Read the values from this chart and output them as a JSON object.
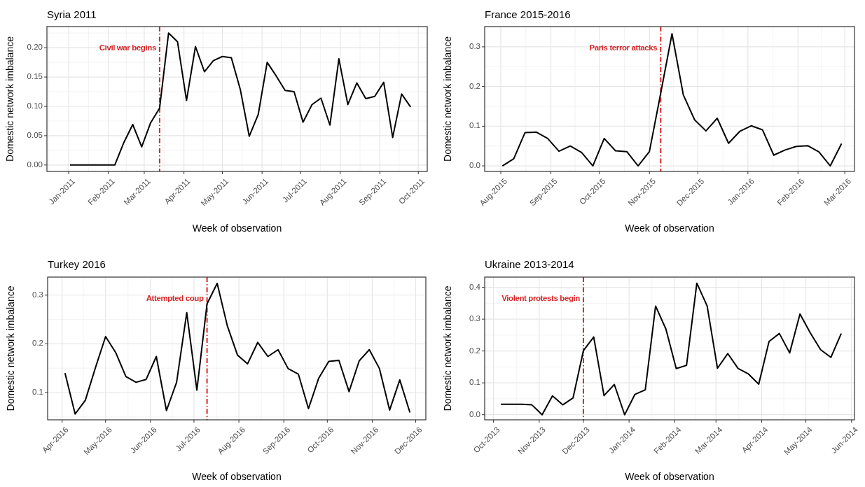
{
  "chart_data": [
    {
      "type": "line",
      "title": "Syria 2011",
      "xlabel": "Week of observation",
      "ylabel": "Domestic network imbalance",
      "grid": true,
      "line_style": "solid",
      "x": [
        "2011-01-02",
        "2011-01-09",
        "2011-01-16",
        "2011-01-23",
        "2011-01-30",
        "2011-02-06",
        "2011-02-13",
        "2011-02-20",
        "2011-02-27",
        "2011-03-06",
        "2011-03-13",
        "2011-03-20",
        "2011-03-27",
        "2011-04-03",
        "2011-04-10",
        "2011-04-17",
        "2011-04-24",
        "2011-05-01",
        "2011-05-08",
        "2011-05-15",
        "2011-05-22",
        "2011-05-29",
        "2011-06-05",
        "2011-06-12",
        "2011-06-19",
        "2011-06-26",
        "2011-07-03",
        "2011-07-10",
        "2011-07-17",
        "2011-07-24",
        "2011-07-31",
        "2011-08-07",
        "2011-08-14",
        "2011-08-21",
        "2011-08-28",
        "2011-09-04",
        "2011-09-11",
        "2011-09-18",
        "2011-09-25"
      ],
      "series": [
        {
          "color": "#000000",
          "values": [
            0,
            0,
            0,
            0,
            0,
            0,
            0.038,
            0.069,
            0.031,
            0.072,
            0.097,
            0.225,
            0.21,
            0.11,
            0.202,
            0.159,
            0.178,
            0.185,
            0.183,
            0.129,
            0.049,
            0.086,
            0.175,
            0.152,
            0.127,
            0.125,
            0.073,
            0.103,
            0.114,
            0.068,
            0.181,
            0.103,
            0.14,
            0.113,
            0.117,
            0.141,
            0.047,
            0.121,
            0.099
          ]
        }
      ],
      "xlim": [
        "2010-12-15",
        "2011-10-08"
      ],
      "xticks": [
        {
          "value": "2011-01-01",
          "label": "Jan-2011"
        },
        {
          "value": "2011-02-01",
          "label": "Feb-2011"
        },
        {
          "value": "2011-03-01",
          "label": "Mar-2011"
        },
        {
          "value": "2011-04-01",
          "label": "Apr-2011"
        },
        {
          "value": "2011-05-01",
          "label": "May-2011"
        },
        {
          "value": "2011-06-01",
          "label": "Jun-2011"
        },
        {
          "value": "2011-07-01",
          "label": "Jul-2011"
        },
        {
          "value": "2011-08-01",
          "label": "Aug-2011"
        },
        {
          "value": "2011-09-01",
          "label": "Sep-2011"
        },
        {
          "value": "2011-10-01",
          "label": "Oct-2011"
        }
      ],
      "ylim": [
        -0.011,
        0.236
      ],
      "yticks": [
        {
          "value": 0,
          "label": "0.00"
        },
        {
          "value": 0.05,
          "label": "0.05"
        },
        {
          "value": 0.1,
          "label": "0.10"
        },
        {
          "value": 0.15,
          "label": "0.15"
        },
        {
          "value": 0.2,
          "label": "0.20"
        }
      ],
      "ref_lines": [
        {
          "axis": "x",
          "value": "2011-03-13",
          "label": "Civil war begins",
          "color": "#d62728",
          "line_style": "dashdot"
        }
      ]
    },
    {
      "type": "line",
      "title": "France 2015-2016",
      "xlabel": "Week of observation",
      "ylabel": "Domestic network imbalance",
      "grid": true,
      "line_style": "solid",
      "x": [
        "2015-08-02",
        "2015-08-09",
        "2015-08-16",
        "2015-08-23",
        "2015-08-30",
        "2015-09-06",
        "2015-09-13",
        "2015-09-20",
        "2015-09-27",
        "2015-10-04",
        "2015-10-11",
        "2015-10-18",
        "2015-10-25",
        "2015-11-01",
        "2015-11-08",
        "2015-11-15",
        "2015-11-22",
        "2015-11-29",
        "2015-12-06",
        "2015-12-13",
        "2015-12-20",
        "2015-12-27",
        "2016-01-03",
        "2016-01-10",
        "2016-01-17",
        "2016-01-24",
        "2016-01-31",
        "2016-02-07",
        "2016-02-14",
        "2016-02-21",
        "2016-02-28"
      ],
      "series": [
        {
          "color": "#000000",
          "values": [
            0,
            0.018,
            0.084,
            0.085,
            0.069,
            0.037,
            0.05,
            0.034,
            0,
            0.069,
            0.038,
            0.036,
            0,
            0.036,
            0.183,
            0.333,
            0.179,
            0.116,
            0.088,
            0.12,
            0.057,
            0.087,
            0.101,
            0.091,
            0.027,
            0.04,
            0.049,
            0.051,
            0.035,
            0,
            0.056
          ]
        }
      ],
      "xlim": [
        "2015-07-22",
        "2016-03-07"
      ],
      "xticks": [
        {
          "value": "2015-08-01",
          "label": "Aug-2015"
        },
        {
          "value": "2015-09-01",
          "label": "Sep-2015"
        },
        {
          "value": "2015-10-01",
          "label": "Oct-2015"
        },
        {
          "value": "2015-11-01",
          "label": "Nov-2015"
        },
        {
          "value": "2015-12-01",
          "label": "Dec-2015"
        },
        {
          "value": "2016-01-01",
          "label": "Jan-2016"
        },
        {
          "value": "2016-02-01",
          "label": "Feb-2016"
        },
        {
          "value": "2016-03-01",
          "label": "Mar-2016"
        }
      ],
      "ylim": [
        -0.014,
        0.351
      ],
      "yticks": [
        {
          "value": 0,
          "label": "0.0"
        },
        0.1,
        0.2,
        0.3
      ],
      "ref_lines": [
        {
          "axis": "x",
          "value": "2015-11-08",
          "label": "Paris terror attacks",
          "color": "#d62728",
          "line_style": "dashdot"
        }
      ]
    },
    {
      "type": "line",
      "title": "Turkey 2016",
      "xlabel": "Week of observation",
      "ylabel": "Domestic network imbalance",
      "grid": true,
      "line_style": "solid",
      "x": [
        "2016-04-03",
        "2016-04-10",
        "2016-04-17",
        "2016-04-24",
        "2016-05-01",
        "2016-05-08",
        "2016-05-15",
        "2016-05-22",
        "2016-05-29",
        "2016-06-05",
        "2016-06-12",
        "2016-06-19",
        "2016-06-26",
        "2016-07-03",
        "2016-07-10",
        "2016-07-17",
        "2016-07-24",
        "2016-07-31",
        "2016-08-07",
        "2016-08-14",
        "2016-08-21",
        "2016-08-28",
        "2016-09-04",
        "2016-09-11",
        "2016-09-18",
        "2016-09-25",
        "2016-10-02",
        "2016-10-09",
        "2016-10-16",
        "2016-10-23",
        "2016-10-30",
        "2016-11-06",
        "2016-11-13",
        "2016-11-20",
        "2016-11-27"
      ],
      "series": [
        {
          "color": "#000000",
          "values": [
            0.14,
            0.056,
            0.084,
            0.151,
            0.215,
            0.182,
            0.133,
            0.121,
            0.127,
            0.174,
            0.063,
            0.121,
            0.264,
            0.105,
            0.282,
            0.324,
            0.237,
            0.177,
            0.159,
            0.203,
            0.174,
            0.188,
            0.149,
            0.138,
            0.067,
            0.129,
            0.164,
            0.166,
            0.102,
            0.165,
            0.188,
            0.149,
            0.064,
            0.126,
            0.059
          ]
        }
      ],
      "xlim": [
        "2016-03-22",
        "2016-12-08"
      ],
      "xticks": [
        {
          "value": "2016-04-01",
          "label": "Apr-2016"
        },
        {
          "value": "2016-05-01",
          "label": "May-2016"
        },
        {
          "value": "2016-06-01",
          "label": "Jun-2016"
        },
        {
          "value": "2016-07-01",
          "label": "Jul-2016"
        },
        {
          "value": "2016-08-01",
          "label": "Aug-2016"
        },
        {
          "value": "2016-09-01",
          "label": "Sep-2016"
        },
        {
          "value": "2016-10-01",
          "label": "Oct-2016"
        },
        {
          "value": "2016-11-01",
          "label": "Nov-2016"
        },
        {
          "value": "2016-12-01",
          "label": "Dec-2016"
        }
      ],
      "ylim": [
        0.044,
        0.337
      ],
      "yticks": [
        0.1,
        0.2,
        0.3
      ],
      "ref_lines": [
        {
          "axis": "x",
          "value": "2016-07-10",
          "label": "Attempted coup",
          "color": "#d62728",
          "line_style": "dashdot"
        }
      ]
    },
    {
      "type": "line",
      "title": "Ukraine 2013-2014",
      "xlabel": "Week of observation",
      "ylabel": "Domestic network imbalance",
      "grid": true,
      "line_style": "solid",
      "x": [
        "2013-10-06",
        "2013-10-13",
        "2013-10-20",
        "2013-10-27",
        "2013-11-03",
        "2013-11-10",
        "2013-11-17",
        "2013-11-24",
        "2013-12-01",
        "2013-12-08",
        "2013-12-15",
        "2013-12-22",
        "2013-12-29",
        "2014-01-05",
        "2014-01-12",
        "2014-01-19",
        "2014-01-26",
        "2014-02-02",
        "2014-02-09",
        "2014-02-16",
        "2014-02-23",
        "2014-03-02",
        "2014-03-09",
        "2014-03-16",
        "2014-03-23",
        "2014-03-30",
        "2014-04-06",
        "2014-04-13",
        "2014-04-20",
        "2014-04-27",
        "2014-05-04",
        "2014-05-11",
        "2014-05-18",
        "2014-05-25"
      ],
      "series": [
        {
          "color": "#000000",
          "values": [
            0.033,
            0.033,
            0.033,
            0.031,
            0,
            0.059,
            0.031,
            0.053,
            0.201,
            0.244,
            0.06,
            0.095,
            0,
            0.064,
            0.078,
            0.341,
            0.269,
            0.145,
            0.155,
            0.413,
            0.341,
            0.146,
            0.192,
            0.145,
            0.128,
            0.096,
            0.23,
            0.255,
            0.194,
            0.316,
            0.257,
            0.204,
            0.18,
            0.255
          ]
        }
      ],
      "xlim": [
        "2013-09-25",
        "2014-06-03"
      ],
      "xticks": [
        {
          "value": "2013-10-01",
          "label": "Oct-2013"
        },
        {
          "value": "2013-11-01",
          "label": "Nov-2013"
        },
        {
          "value": "2013-12-01",
          "label": "Dec-2013"
        },
        {
          "value": "2014-01-01",
          "label": "Jan-2014"
        },
        {
          "value": "2014-02-01",
          "label": "Feb-2014"
        },
        {
          "value": "2014-03-01",
          "label": "Mar-2014"
        },
        {
          "value": "2014-04-01",
          "label": "Apr-2014"
        },
        {
          "value": "2014-05-01",
          "label": "May-2014"
        },
        {
          "value": "2014-06-01",
          "label": "Jun-2014"
        }
      ],
      "ylim": [
        -0.016,
        0.432
      ],
      "yticks": [
        {
          "value": 0,
          "label": "0.0"
        },
        0.1,
        0.2,
        0.3,
        0.4
      ],
      "ref_lines": [
        {
          "axis": "x",
          "value": "2013-12-01",
          "label": "Violent protests begin",
          "color": "#d62728",
          "line_style": "dashdot"
        }
      ]
    }
  ]
}
